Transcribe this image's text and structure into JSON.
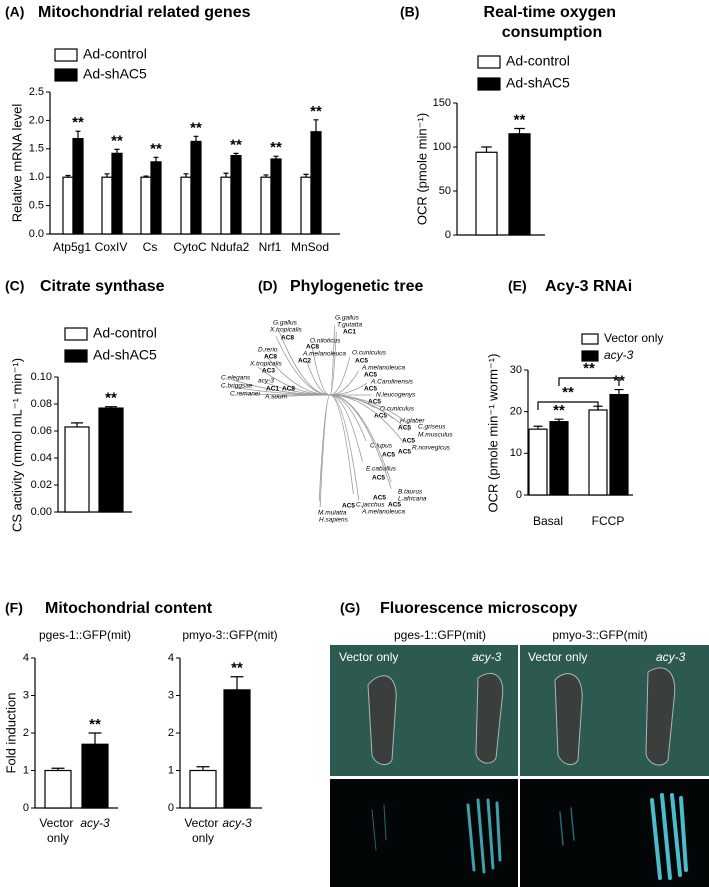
{
  "chart_data": [
    {
      "type": "bar",
      "panel_label": "(A)",
      "title": "Mitochondrial related genes",
      "y_label": "Relative mRNA level",
      "categories": [
        "Atp5g1",
        "CoxIV",
        "Cs",
        "CytoC",
        "Ndufa2",
        "Nrf1",
        "MnSod"
      ],
      "series": [
        {
          "name": "Ad-control",
          "color": "#ffffff",
          "values": [
            1,
            1,
            1,
            1,
            1,
            1,
            1
          ],
          "errors": [
            0.03,
            0.06,
            0.02,
            0.06,
            0.07,
            0.04,
            0.05
          ]
        },
        {
          "name": "Ad-shAC5",
          "color": "#000000",
          "values": [
            1.68,
            1.42,
            1.27,
            1.63,
            1.38,
            1.32,
            1.8
          ],
          "errors": [
            0.13,
            0.07,
            0.08,
            0.09,
            0.04,
            0.05,
            0.21
          ],
          "annotations": [
            "**",
            "**",
            "**",
            "**",
            "**",
            "**",
            "**"
          ]
        }
      ],
      "ylim": [
        0,
        2.5
      ],
      "yticks": [
        {
          "value": 0,
          "label": "0.0"
        },
        0.5,
        {
          "value": 1,
          "label": "1.0"
        },
        1.5,
        {
          "value": 2,
          "label": "2.0"
        },
        2.5
      ]
    },
    {
      "type": "bar",
      "panel_label": "(B)",
      "title": "Real-time oxygen consumption",
      "y_label": "OCR (pmole min⁻¹)",
      "categories": [
        null
      ],
      "series": [
        {
          "name": "Ad-control",
          "color": "#ffffff",
          "values": [
            94
          ],
          "errors": [
            6
          ]
        },
        {
          "name": "Ad-shAC5",
          "color": "#000000",
          "values": [
            115
          ],
          "errors": [
            6
          ],
          "annotations": [
            "**"
          ]
        }
      ],
      "ylim": [
        0,
        150
      ],
      "yticks": [
        0,
        50,
        100,
        150
      ]
    },
    {
      "type": "bar",
      "panel_label": "(C)",
      "title": "Citrate synthase",
      "y_label": "CS activity (mmol mL⁻¹ min⁻¹)",
      "categories": [
        null
      ],
      "series": [
        {
          "name": "Ad-control",
          "color": "#ffffff",
          "values": [
            0.063
          ],
          "errors": [
            0.003
          ]
        },
        {
          "name": "Ad-shAC5",
          "color": "#000000",
          "values": [
            0.077
          ],
          "errors": [
            0.001
          ],
          "annotations": [
            "**"
          ]
        }
      ],
      "ylim": [
        0,
        0.1
      ],
      "yticks": [
        {
          "value": 0,
          "label": "0.00"
        },
        {
          "value": 0.02,
          "label": "0.02"
        },
        {
          "value": 0.04,
          "label": "0.04"
        },
        {
          "value": 0.06,
          "label": "0.06"
        },
        {
          "value": 0.08,
          "label": "0.08"
        },
        {
          "value": 0.1,
          "label": "0.10"
        }
      ]
    },
    {
      "type": "tree",
      "panel_label": "(D)",
      "title": "Phylogenetic tree",
      "labels": [
        "G.gallus",
        "T.gutatta",
        "AC1",
        "G.gallus",
        "X.tropicalis",
        "AC8",
        "O.niloticus",
        "AC8",
        "A.melanoleuca",
        "AC2",
        "D.rerio",
        "AC8",
        "X.tropicalis",
        "AC3",
        "C.elegans",
        "acy-3",
        "C.briggsae",
        "C.remanei",
        "AC1",
        "AC8",
        "A.suum",
        "O.cuniculus",
        "AC5",
        "A.melanoleuca",
        "AC5",
        "A.Carolinensis",
        "AC5",
        "N.leucogenys",
        "AC5",
        "O.cuniculus",
        "AC5",
        "H.glaber",
        "AC5",
        "C.griseus",
        "M.musculus",
        "AC5",
        "R.norvegicus",
        "AC5",
        "C.lupus",
        "AC5",
        "E.caballus",
        "AC5",
        "B.taurus",
        "L.africana",
        "AC5",
        "AC5",
        "C.jacchus",
        "A.melanoleuca",
        "AC5",
        "M.mulatta",
        "H.sapiens"
      ]
    },
    {
      "type": "bar",
      "panel_label": "(E)",
      "title": "Acy-3 RNAi",
      "y_label": "OCR (pmole min⁻¹ worm⁻¹)",
      "categories": [
        "Basal",
        "FCCP"
      ],
      "series": [
        {
          "name": "Vector only",
          "color": "#ffffff",
          "values": [
            15.8,
            20.4
          ],
          "errors": [
            0.7,
            0.9
          ]
        },
        {
          "name": "acy-3",
          "color": "#000000",
          "values": [
            17.6,
            24.1
          ],
          "errors": [
            0.6,
            1.2
          ],
          "annotations": [
            "**",
            "**"
          ]
        }
      ],
      "brackets": [
        "**",
        "**"
      ],
      "ylim": [
        0,
        30
      ],
      "yticks": [
        0,
        10,
        20,
        30
      ]
    },
    {
      "type": "bar",
      "panel_label": "(F)",
      "title": "Mitochondrial content",
      "subtitle": "pges-1::GFP(mit)",
      "y_label": "Fold induction",
      "categories": [
        "Vector only",
        "acy-3"
      ],
      "values": [
        1,
        1.7
      ],
      "errors": [
        0.06,
        0.3
      ],
      "colors": [
        "#ffffff",
        "#000000"
      ],
      "annotations": [
        null,
        "**"
      ],
      "ylim": [
        0,
        4
      ],
      "yticks": [
        0,
        1,
        2,
        3,
        4
      ]
    },
    {
      "type": "bar",
      "subtitle": "pmyo-3::GFP(mit)",
      "categories": [
        "Vector only",
        "acy-3"
      ],
      "values": [
        1,
        3.15
      ],
      "errors": [
        0.1,
        0.35
      ],
      "colors": [
        "#ffffff",
        "#000000"
      ],
      "annotations": [
        null,
        "**"
      ],
      "ylim": [
        0,
        4
      ],
      "yticks": [
        0,
        1,
        2,
        3,
        4
      ]
    },
    {
      "type": "image",
      "panel_label": "(G)",
      "title": "Fluorescence microscopy",
      "columns": [
        "pges-1::GFP(mit)",
        "pmyo-3::GFP(mit)"
      ],
      "panel_labels": [
        "Vector only",
        "acy-3",
        "Vector only",
        "acy-3"
      ]
    }
  ]
}
